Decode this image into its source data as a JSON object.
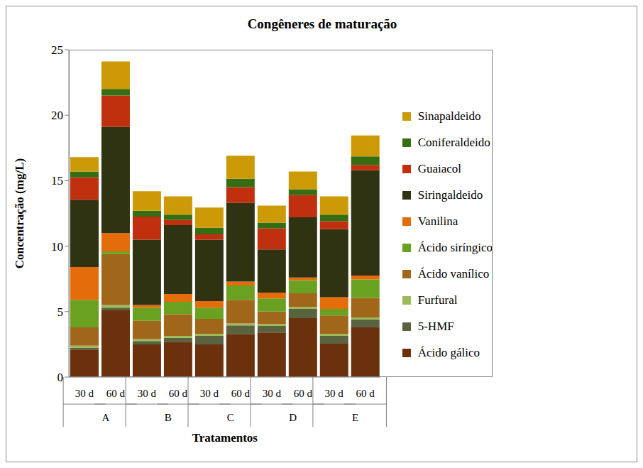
{
  "chart_data": {
    "type": "bar",
    "title": "Congêneres de maturação",
    "x_label": "Tratamentos",
    "y_label": "Concentração (mg/L)",
    "categories": [
      "30 d",
      "60 d",
      "30 d",
      "60 d",
      "30 d",
      "60 d",
      "30 d",
      "60 d",
      "30 d",
      "60 d"
    ],
    "groups": [
      "A",
      "B",
      "C",
      "D",
      "E"
    ],
    "stacked": true,
    "grid": false,
    "legend": "right",
    "ylim": [
      0,
      25
    ],
    "yticks": [
      0,
      5,
      10,
      15,
      20,
      25
    ],
    "series": [
      {
        "name": "Ácido gálico",
        "color": "#6b300c",
        "values": [
          2.1,
          5.1,
          2.5,
          2.7,
          2.5,
          3.3,
          3.4,
          4.5,
          2.55,
          3.8
        ]
      },
      {
        "name": "5-HMF",
        "color": "#5a6340",
        "values": [
          0.15,
          0.2,
          0.25,
          0.3,
          0.65,
          0.65,
          0.5,
          0.7,
          0.6,
          0.6
        ]
      },
      {
        "name": "Furfural",
        "color": "#9bbb59",
        "values": [
          0.15,
          0.2,
          0.15,
          0.15,
          0.15,
          0.15,
          0.15,
          0.15,
          0.15,
          0.15
        ]
      },
      {
        "name": "Ácido vanílico",
        "color": "#a0661a",
        "values": [
          1.4,
          3.9,
          1.4,
          1.65,
          1.15,
          1.8,
          0.95,
          1.05,
          1.4,
          1.5
        ]
      },
      {
        "name": "Ácido siríngico",
        "color": "#6aa121",
        "values": [
          2.1,
          0.2,
          1.0,
          0.95,
          0.85,
          1.1,
          1.0,
          1.0,
          0.5,
          1.4
        ]
      },
      {
        "name": "Vanilina",
        "color": "#e46c0a",
        "values": [
          2.5,
          1.4,
          0.2,
          0.6,
          0.5,
          0.3,
          0.45,
          0.2,
          0.9,
          0.3
        ]
      },
      {
        "name": "Siringaldeido",
        "color": "#2f3312",
        "values": [
          5.15,
          8.1,
          5.0,
          5.25,
          4.7,
          6.0,
          3.3,
          4.6,
          5.2,
          8.05
        ]
      },
      {
        "name": "Guaiacol",
        "color": "#c0300f",
        "values": [
          1.7,
          2.4,
          1.75,
          0.4,
          0.4,
          1.2,
          1.6,
          1.7,
          0.6,
          0.4
        ]
      },
      {
        "name": "Coniferaldeido",
        "color": "#376d12",
        "values": [
          0.45,
          0.5,
          0.45,
          0.4,
          0.5,
          0.65,
          0.45,
          0.45,
          0.5,
          0.65
        ]
      },
      {
        "name": "Sinapaldeido",
        "color": "#cc9a06",
        "values": [
          1.1,
          2.1,
          1.5,
          1.4,
          1.55,
          1.75,
          1.3,
          1.35,
          1.4,
          1.6
        ]
      }
    ]
  }
}
